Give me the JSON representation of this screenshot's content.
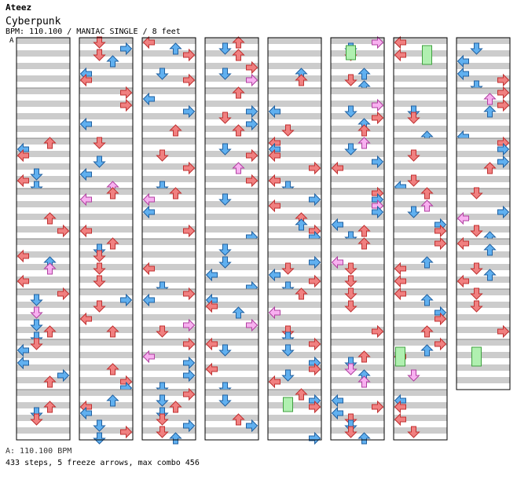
{
  "header": {
    "artist": "Ateez",
    "title": "Cyberpunk",
    "meta": "BPM: 110.100 / MANIAC SINGLE / 8 feet",
    "bpm_marker": "A"
  },
  "footer": {
    "bpm": "A: 110.100 BPM",
    "stats": "433 steps, 5 freeze arrows, max combo 456"
  },
  "colors": {
    "red": "#f08080",
    "red_stroke": "#c03030",
    "blue": "#60b0f0",
    "blue_stroke": "#2060a0",
    "pink": "#f8b0f0",
    "pink_stroke": "#b040a0",
    "green": "#b0f0b0",
    "green_stroke": "#40a040",
    "stripe": "#cccccc"
  },
  "chart": {
    "columns": 8,
    "measures_per_column": 8,
    "measures_in_last_column": 7,
    "lanes": [
      "left",
      "down",
      "up",
      "right"
    ],
    "seed": 20231
  }
}
